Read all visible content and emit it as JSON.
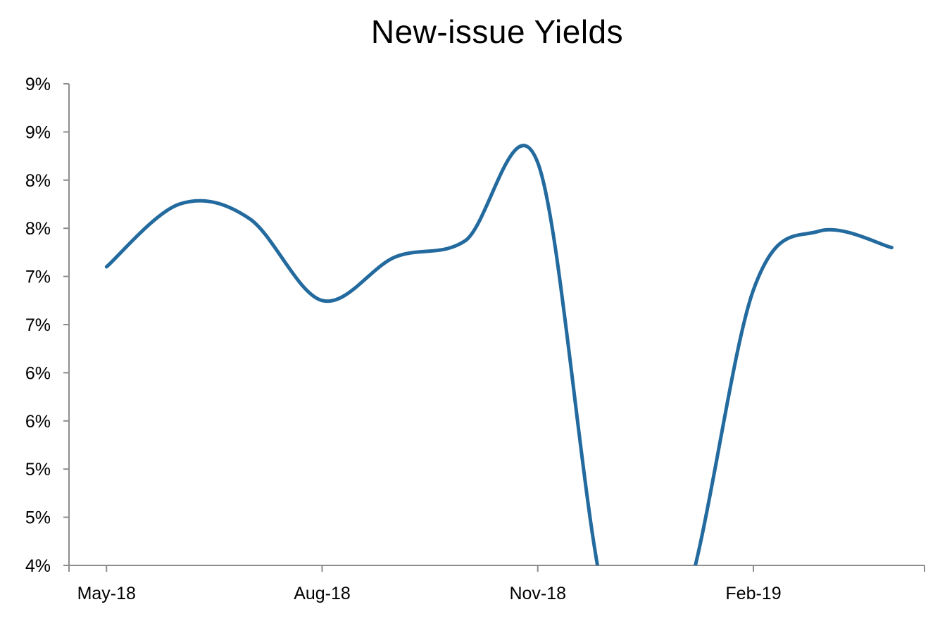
{
  "chart_data": {
    "type": "line",
    "title": "New-issue Yields",
    "xlabel": "",
    "ylabel": "",
    "y_tick_labels": [
      "9%",
      "9%",
      "8%",
      "8%",
      "7%",
      "7%",
      "6%",
      "6%",
      "5%",
      "5%",
      "4%"
    ],
    "y_tick_values": [
      9.0,
      8.5,
      8.0,
      7.5,
      7.0,
      6.5,
      6.0,
      5.5,
      5.0,
      4.5,
      4.0
    ],
    "ylim": [
      4.0,
      9.0
    ],
    "x_tick_labels": [
      "May-18",
      "Aug-18",
      "Nov-18",
      "Feb-19"
    ],
    "x_tick_dates": [
      "2018-05-01",
      "2018-08-01",
      "2018-11-01",
      "2019-02-01"
    ],
    "xlim": [
      "2018-04-15",
      "2019-04-15"
    ],
    "grid": false,
    "legend": "none",
    "series": [
      {
        "color": "#236A9E",
        "smooth": true,
        "points": [
          {
            "x": "2018-05-01",
            "y": 7.1
          },
          {
            "x": "2018-06-01",
            "y": 7.75
          },
          {
            "x": "2018-07-01",
            "y": 7.6
          },
          {
            "x": "2018-08-01",
            "y": 6.75
          },
          {
            "x": "2018-09-01",
            "y": 7.2
          },
          {
            "x": "2018-10-01",
            "y": 7.37
          },
          {
            "x": "2018-11-01",
            "y": 8.18
          },
          {
            "x": "2018-12-01",
            "y": 3.5
          },
          {
            "x": "2019-01-01",
            "y": 3.5
          },
          {
            "x": "2019-02-01",
            "y": 6.86
          },
          {
            "x": "2019-03-01",
            "y": 7.47
          },
          {
            "x": "2019-04-01",
            "y": 7.3
          }
        ]
      }
    ]
  }
}
